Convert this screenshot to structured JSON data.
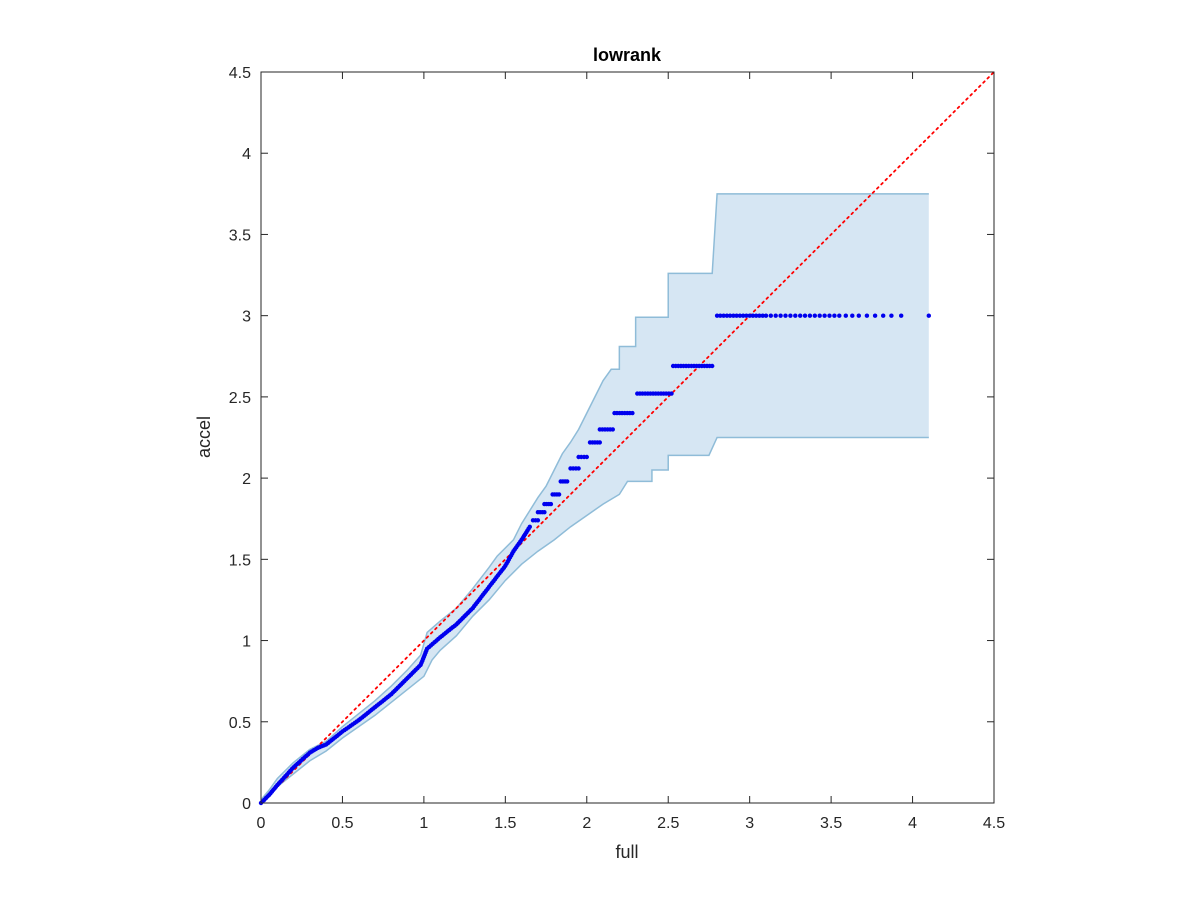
{
  "chart_data": {
    "type": "scatter",
    "title": "lowrank",
    "xlabel": "full",
    "ylabel": "accel",
    "xlim": [
      0,
      4.5
    ],
    "ylim": [
      0,
      4.5
    ],
    "xticks": [
      "0",
      "0.5",
      "1",
      "1.5",
      "2",
      "2.5",
      "3",
      "3.5",
      "4",
      "4.5"
    ],
    "yticks": [
      "0",
      "0.5",
      "1",
      "1.5",
      "2",
      "2.5",
      "3",
      "3.5",
      "4",
      "4.5"
    ],
    "grid": false,
    "legend": "none",
    "colors": {
      "points": "#0000ee",
      "reference": "#ff0000",
      "band_fill": "#d6e6f3",
      "band_edge": "#8fbcd8",
      "axes": "#262626"
    },
    "reference_line": {
      "style": "dotted",
      "x": [
        0,
        4.5
      ],
      "y": [
        0,
        4.5
      ]
    },
    "band": {
      "upper": [
        [
          0,
          0.02
        ],
        [
          0.05,
          0.08
        ],
        [
          0.1,
          0.15
        ],
        [
          0.2,
          0.25
        ],
        [
          0.3,
          0.33
        ],
        [
          0.4,
          0.38
        ],
        [
          0.5,
          0.47
        ],
        [
          0.6,
          0.55
        ],
        [
          0.7,
          0.63
        ],
        [
          0.8,
          0.72
        ],
        [
          0.9,
          0.82
        ],
        [
          0.98,
          0.91
        ],
        [
          1.02,
          1.05
        ],
        [
          1.1,
          1.12
        ],
        [
          1.2,
          1.2
        ],
        [
          1.3,
          1.32
        ],
        [
          1.4,
          1.45
        ],
        [
          1.45,
          1.52
        ],
        [
          1.55,
          1.62
        ],
        [
          1.6,
          1.72
        ],
        [
          1.65,
          1.8
        ],
        [
          1.7,
          1.88
        ],
        [
          1.75,
          1.95
        ],
        [
          1.8,
          2.05
        ],
        [
          1.85,
          2.15
        ],
        [
          1.9,
          2.22
        ],
        [
          1.95,
          2.3
        ],
        [
          2.0,
          2.4
        ],
        [
          2.05,
          2.5
        ],
        [
          2.1,
          2.6
        ],
        [
          2.15,
          2.67
        ],
        [
          2.2,
          2.67
        ],
        [
          2.2,
          2.81
        ],
        [
          2.3,
          2.81
        ],
        [
          2.3,
          2.99
        ],
        [
          2.5,
          2.99
        ],
        [
          2.5,
          3.26
        ],
        [
          2.77,
          3.26
        ],
        [
          2.8,
          3.75
        ],
        [
          4.1,
          3.75
        ]
      ],
      "lower": [
        [
          0,
          0.0
        ],
        [
          0.05,
          0.05
        ],
        [
          0.1,
          0.1
        ],
        [
          0.2,
          0.18
        ],
        [
          0.3,
          0.26
        ],
        [
          0.4,
          0.32
        ],
        [
          0.5,
          0.4
        ],
        [
          0.6,
          0.47
        ],
        [
          0.7,
          0.54
        ],
        [
          0.8,
          0.62
        ],
        [
          0.9,
          0.7
        ],
        [
          1.0,
          0.78
        ],
        [
          1.05,
          0.88
        ],
        [
          1.1,
          0.94
        ],
        [
          1.2,
          1.03
        ],
        [
          1.3,
          1.15
        ],
        [
          1.4,
          1.25
        ],
        [
          1.5,
          1.37
        ],
        [
          1.6,
          1.47
        ],
        [
          1.7,
          1.55
        ],
        [
          1.8,
          1.62
        ],
        [
          1.9,
          1.7
        ],
        [
          2.0,
          1.77
        ],
        [
          2.1,
          1.84
        ],
        [
          2.2,
          1.9
        ],
        [
          2.25,
          1.98
        ],
        [
          2.4,
          1.98
        ],
        [
          2.4,
          2.05
        ],
        [
          2.5,
          2.05
        ],
        [
          2.5,
          2.14
        ],
        [
          2.75,
          2.14
        ],
        [
          2.8,
          2.25
        ],
        [
          4.1,
          2.25
        ]
      ]
    },
    "series": [
      {
        "dense": [
          [
            0.0,
            0.0
          ],
          [
            0.05,
            0.05
          ],
          [
            0.1,
            0.11
          ],
          [
            0.2,
            0.22
          ],
          [
            0.3,
            0.31
          ],
          [
            0.35,
            0.34
          ],
          [
            0.4,
            0.36
          ],
          [
            0.5,
            0.44
          ],
          [
            0.6,
            0.51
          ],
          [
            0.7,
            0.59
          ],
          [
            0.8,
            0.67
          ],
          [
            0.9,
            0.77
          ],
          [
            0.98,
            0.85
          ],
          [
            1.0,
            0.9
          ],
          [
            1.02,
            0.95
          ],
          [
            1.1,
            1.02
          ],
          [
            1.2,
            1.1
          ],
          [
            1.3,
            1.2
          ],
          [
            1.4,
            1.33
          ],
          [
            1.5,
            1.46
          ],
          [
            1.55,
            1.55
          ],
          [
            1.6,
            1.62
          ],
          [
            1.65,
            1.7
          ]
        ],
        "steps": [
          {
            "y": 1.74,
            "x0": 1.67,
            "x1": 1.7
          },
          {
            "y": 1.79,
            "x0": 1.7,
            "x1": 1.74
          },
          {
            "y": 1.84,
            "x0": 1.74,
            "x1": 1.78
          },
          {
            "y": 1.9,
            "x0": 1.79,
            "x1": 1.83
          },
          {
            "y": 1.98,
            "x0": 1.84,
            "x1": 1.88
          },
          {
            "y": 2.06,
            "x0": 1.9,
            "x1": 1.95
          },
          {
            "y": 2.13,
            "x0": 1.95,
            "x1": 2.0
          },
          {
            "y": 2.22,
            "x0": 2.02,
            "x1": 2.08
          },
          {
            "y": 2.3,
            "x0": 2.08,
            "x1": 2.16
          },
          {
            "y": 2.4,
            "x0": 2.17,
            "x1": 2.28
          },
          {
            "y": 2.52,
            "x0": 2.31,
            "x1": 2.52
          },
          {
            "y": 2.69,
            "x0": 2.53,
            "x1": 2.77
          }
        ],
        "tail": [
          [
            2.8,
            3.0
          ],
          [
            2.82,
            3.0
          ],
          [
            2.84,
            3.0
          ],
          [
            2.86,
            3.0
          ],
          [
            2.88,
            3.0
          ],
          [
            2.9,
            3.0
          ],
          [
            2.92,
            3.0
          ],
          [
            2.94,
            3.0
          ],
          [
            2.96,
            3.0
          ],
          [
            2.98,
            3.0
          ],
          [
            3.0,
            3.0
          ],
          [
            3.02,
            3.0
          ],
          [
            3.04,
            3.0
          ],
          [
            3.06,
            3.0
          ],
          [
            3.08,
            3.0
          ],
          [
            3.1,
            3.0
          ],
          [
            3.13,
            3.0
          ],
          [
            3.16,
            3.0
          ],
          [
            3.19,
            3.0
          ],
          [
            3.22,
            3.0
          ],
          [
            3.25,
            3.0
          ],
          [
            3.28,
            3.0
          ],
          [
            3.31,
            3.0
          ],
          [
            3.34,
            3.0
          ],
          [
            3.37,
            3.0
          ],
          [
            3.4,
            3.0
          ],
          [
            3.43,
            3.0
          ],
          [
            3.46,
            3.0
          ],
          [
            3.49,
            3.0
          ],
          [
            3.52,
            3.0
          ],
          [
            3.55,
            3.0
          ],
          [
            3.59,
            3.0
          ],
          [
            3.63,
            3.0
          ],
          [
            3.67,
            3.0
          ],
          [
            3.72,
            3.0
          ],
          [
            3.77,
            3.0
          ],
          [
            3.82,
            3.0
          ],
          [
            3.87,
            3.0
          ],
          [
            3.93,
            3.0
          ],
          [
            4.1,
            3.0
          ]
        ]
      }
    ]
  }
}
